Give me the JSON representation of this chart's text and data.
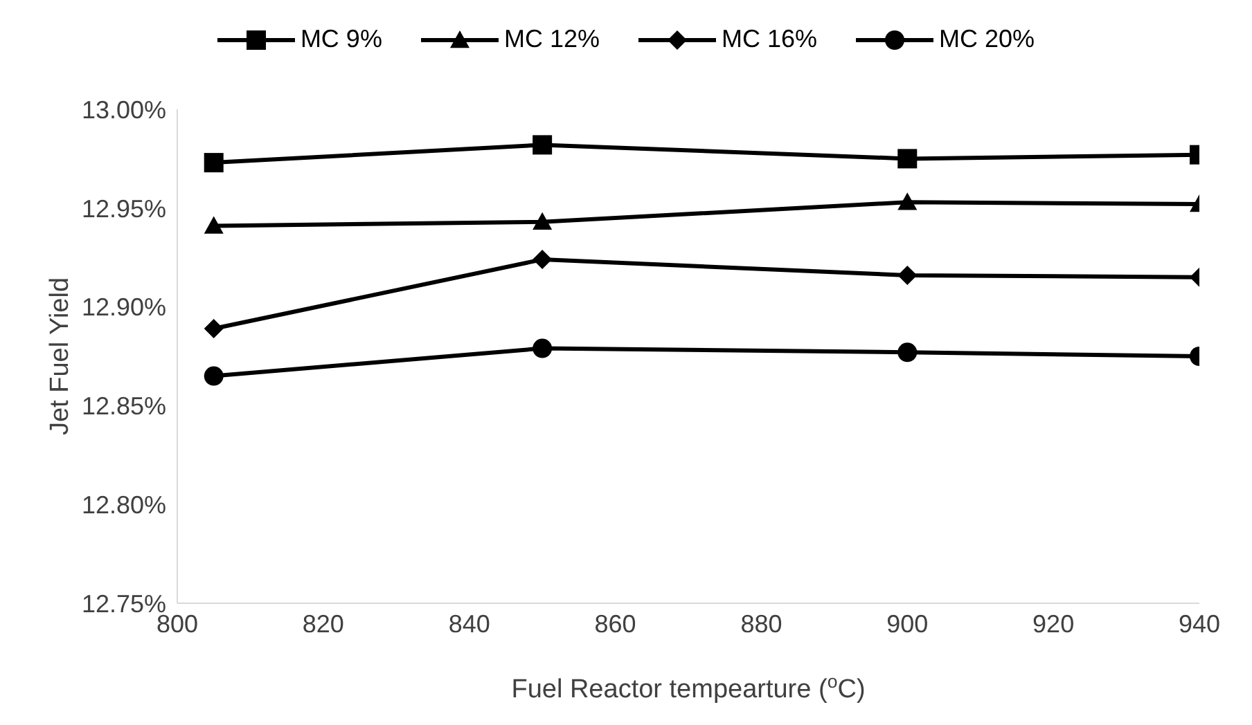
{
  "chart_data": {
    "type": "line",
    "xlabel": "Fuel Reactor tempearture ($^{o}$C)",
    "ylabel": "Jet Fuel Yield",
    "x": [
      805,
      850,
      900,
      940
    ],
    "series": [
      {
        "name": "MC 9%",
        "color": "#000000",
        "marker": "square",
        "values": [
          12.973,
          12.982,
          12.975,
          12.977
        ]
      },
      {
        "name": "MC 12%",
        "color": "#000000",
        "marker": "triangle",
        "values": [
          12.941,
          12.943,
          12.953,
          12.952
        ]
      },
      {
        "name": "MC 16%",
        "color": "#000000",
        "marker": "diamond",
        "values": [
          12.889,
          12.924,
          12.916,
          12.915
        ]
      },
      {
        "name": "MC 20%",
        "color": "#000000",
        "marker": "circle",
        "values": [
          12.865,
          12.879,
          12.877,
          12.875
        ]
      }
    ],
    "xlim": [
      800,
      940
    ],
    "xticks": [
      800,
      820,
      840,
      860,
      880,
      900,
      920,
      940
    ],
    "ylim": [
      12.75,
      13.0
    ],
    "yticks": [
      {
        "value": 12.75,
        "label": "12.75%"
      },
      {
        "value": 12.8,
        "label": "12.80%"
      },
      {
        "value": 12.85,
        "label": "12.85%"
      },
      {
        "value": 12.9,
        "label": "12.90%"
      },
      {
        "value": 12.95,
        "label": "12.95%"
      },
      {
        "value": 13.0,
        "label": "13.00%"
      }
    ],
    "grid": false,
    "legend": "top",
    "line_style": "solid"
  }
}
